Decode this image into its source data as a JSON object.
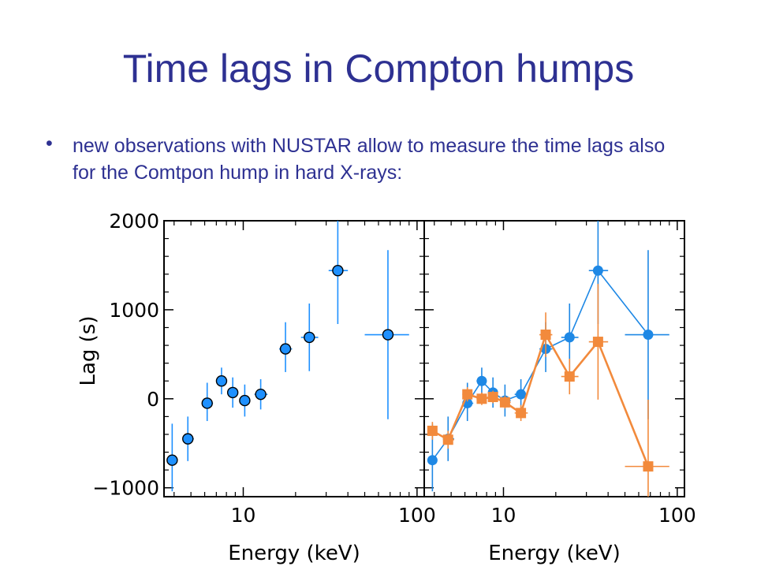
{
  "slide": {
    "title": "Time lags in Compton humps",
    "bullet": "new observations with NUSTAR allow to measure the time lags also for the Comtpon hump in hard X-rays:"
  },
  "colors": {
    "title": "#2e3192",
    "blue": "#1e88e5",
    "blue_marker": "#1e90ff",
    "orange": "#f28a3c"
  },
  "chart_data": [
    {
      "type": "scatter",
      "xscale": "log",
      "xlabel": "Energy (keV)",
      "ylabel": "Lag (s)",
      "xlim": [
        3.5,
        110
      ],
      "ylim": [
        -1100,
        2000
      ],
      "xticks": [
        10,
        100
      ],
      "yticks": [
        2000,
        1000,
        0,
        -1000
      ],
      "ytick_labels": [
        "2000",
        "1000",
        "0",
        "−1000"
      ],
      "series": [
        {
          "marker": "circle",
          "color": "#1e90ff",
          "points": [
            {
              "x": 3.9,
              "y": -690,
              "xerr": [
                0.2,
                0.2
              ],
              "yerr": [
                350,
                410
              ]
            },
            {
              "x": 4.8,
              "y": -450,
              "xerr": [
                0.3,
                0.4
              ],
              "yerr": [
                250,
                250
              ]
            },
            {
              "x": 6.2,
              "y": -50,
              "xerr": [
                0.4,
                0.5
              ],
              "yerr": [
                200,
                230
              ]
            },
            {
              "x": 7.5,
              "y": 200,
              "xerr": [
                0.5,
                0.5
              ],
              "yerr": [
                150,
                150
              ]
            },
            {
              "x": 8.7,
              "y": 70,
              "xerr": [
                0.5,
                0.6
              ],
              "yerr": [
                170,
                170
              ]
            },
            {
              "x": 10.2,
              "y": -20,
              "xerr": [
                0.6,
                0.8
              ],
              "yerr": [
                180,
                180
              ]
            },
            {
              "x": 12.6,
              "y": 50,
              "xerr": [
                1.0,
                1.2
              ],
              "yerr": [
                170,
                170
              ]
            },
            {
              "x": 17.5,
              "y": 560,
              "xerr": [
                1.4,
                1.6
              ],
              "yerr": [
                260,
                300
              ]
            },
            {
              "x": 24.0,
              "y": 690,
              "xerr": [
                2.5,
                3.0
              ],
              "yerr": [
                380,
                380
              ]
            },
            {
              "x": 35.0,
              "y": 1440,
              "xerr": [
                4.0,
                5.0
              ],
              "yerr": [
                600,
                560
              ]
            },
            {
              "x": 68.0,
              "y": 720,
              "xerr": [
                18,
                22
              ],
              "yerr": [
                950,
                950
              ]
            }
          ]
        }
      ]
    },
    {
      "type": "line",
      "xscale": "log",
      "xlabel": "Energy (keV)",
      "ylabel": "",
      "xlim": [
        3.5,
        110
      ],
      "ylim": [
        -1100,
        2000
      ],
      "xticks": [
        10,
        100
      ],
      "yticks": [
        2000,
        1000,
        0,
        -1000
      ],
      "series": [
        {
          "marker": "circle",
          "color": "#1e88e5",
          "points": [
            {
              "x": 3.9,
              "y": -690,
              "xerr": [
                0.2,
                0.2
              ],
              "yerr": [
                350,
                410
              ]
            },
            {
              "x": 4.8,
              "y": -450,
              "xerr": [
                0.3,
                0.4
              ],
              "yerr": [
                250,
                250
              ]
            },
            {
              "x": 6.2,
              "y": -50,
              "xerr": [
                0.4,
                0.5
              ],
              "yerr": [
                200,
                230
              ]
            },
            {
              "x": 7.5,
              "y": 200,
              "xerr": [
                0.5,
                0.5
              ],
              "yerr": [
                150,
                150
              ]
            },
            {
              "x": 8.7,
              "y": 70,
              "xerr": [
                0.5,
                0.6
              ],
              "yerr": [
                170,
                170
              ]
            },
            {
              "x": 10.2,
              "y": -20,
              "xerr": [
                0.6,
                0.8
              ],
              "yerr": [
                180,
                180
              ]
            },
            {
              "x": 12.6,
              "y": 50,
              "xerr": [
                1.0,
                1.2
              ],
              "yerr": [
                170,
                170
              ]
            },
            {
              "x": 17.5,
              "y": 560,
              "xerr": [
                1.4,
                1.6
              ],
              "yerr": [
                260,
                300
              ]
            },
            {
              "x": 24.0,
              "y": 690,
              "xerr": [
                2.5,
                3.0
              ],
              "yerr": [
                380,
                380
              ]
            },
            {
              "x": 35.0,
              "y": 1440,
              "xerr": [
                4.0,
                5.0
              ],
              "yerr": [
                600,
                560
              ]
            },
            {
              "x": 68.0,
              "y": 720,
              "xerr": [
                18,
                22
              ],
              "yerr": [
                950,
                950
              ]
            }
          ]
        },
        {
          "marker": "square",
          "color": "#f28a3c",
          "points": [
            {
              "x": 3.9,
              "y": -360,
              "xerr": [
                0.2,
                0.2
              ],
              "yerr": [
                100,
                100
              ]
            },
            {
              "x": 4.8,
              "y": -460,
              "xerr": [
                0.3,
                0.4
              ],
              "yerr": [
                100,
                100
              ]
            },
            {
              "x": 6.2,
              "y": 50,
              "xerr": [
                0.4,
                0.5
              ],
              "yerr": [
                80,
                80
              ]
            },
            {
              "x": 7.5,
              "y": 0,
              "xerr": [
                0.5,
                0.5
              ],
              "yerr": [
                70,
                70
              ]
            },
            {
              "x": 8.7,
              "y": 20,
              "xerr": [
                0.5,
                0.6
              ],
              "yerr": [
                70,
                70
              ]
            },
            {
              "x": 10.2,
              "y": -40,
              "xerr": [
                0.6,
                0.8
              ],
              "yerr": [
                70,
                70
              ]
            },
            {
              "x": 12.6,
              "y": -160,
              "xerr": [
                1.0,
                1.2
              ],
              "yerr": [
                90,
                90
              ]
            },
            {
              "x": 17.5,
              "y": 720,
              "xerr": [
                1.4,
                1.6
              ],
              "yerr": [
                250,
                250
              ]
            },
            {
              "x": 24.0,
              "y": 250,
              "xerr": [
                2.5,
                3.0
              ],
              "yerr": [
                200,
                200
              ]
            },
            {
              "x": 35.0,
              "y": 640,
              "xerr": [
                4.0,
                5.0
              ],
              "yerr": [
                650,
                650
              ]
            },
            {
              "x": 68.0,
              "y": -760,
              "xerr": [
                18,
                22
              ],
              "yerr": [
                750,
                750
              ]
            }
          ]
        }
      ]
    }
  ]
}
